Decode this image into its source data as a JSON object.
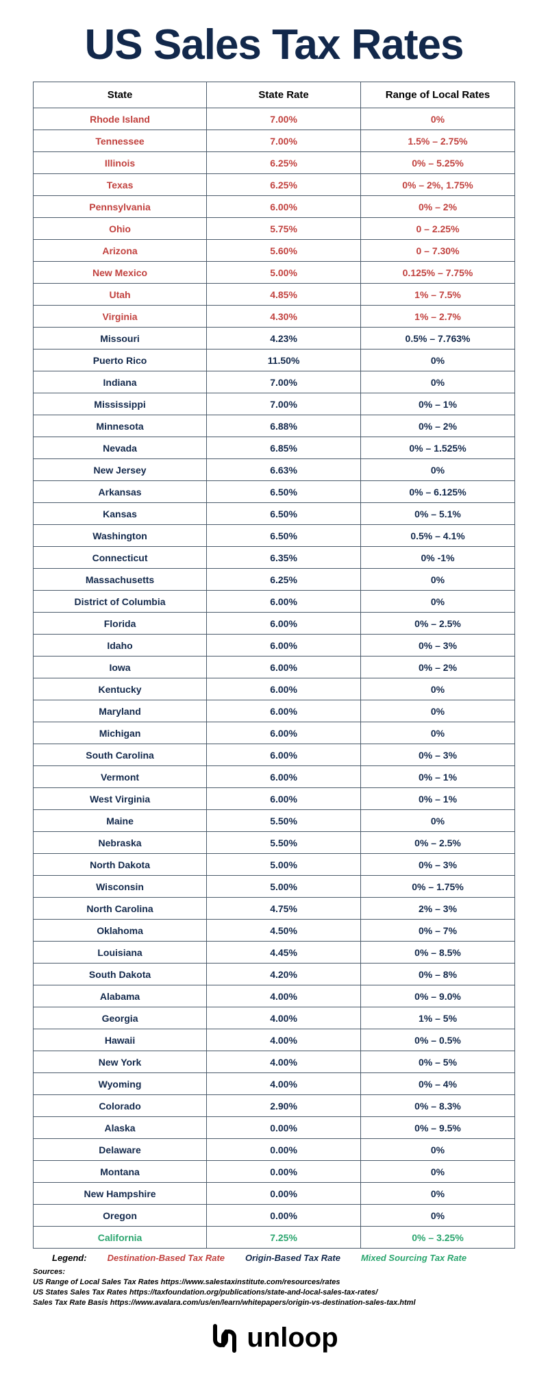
{
  "title": "US Sales Tax Rates",
  "columns": [
    "State",
    "State Rate",
    "Range of Local Rates"
  ],
  "column_widths": [
    "36%",
    "32%",
    "32%"
  ],
  "color_map": {
    "destination": "#c1413e",
    "origin": "#12284b",
    "mixed": "#2aa56e",
    "border": "#4a5a6a",
    "title": "#12284b",
    "background": "#ffffff"
  },
  "font_sizes": {
    "title": 62,
    "header": 15,
    "cell": 14,
    "legend": 13,
    "sources": 11,
    "logo": 40
  },
  "rows": [
    {
      "state": "Rhode Island",
      "rate": "7.00%",
      "local": "0%",
      "type": "destination"
    },
    {
      "state": "Tennessee",
      "rate": "7.00%",
      "local": "1.5% – 2.75%",
      "type": "destination"
    },
    {
      "state": "Illinois",
      "rate": "6.25%",
      "local": "0% – 5.25%",
      "type": "destination"
    },
    {
      "state": "Texas",
      "rate": "6.25%",
      "local": "0% – 2%, 1.75%",
      "type": "destination"
    },
    {
      "state": "Pennsylvania",
      "rate": "6.00%",
      "local": "0% – 2%",
      "type": "destination"
    },
    {
      "state": "Ohio",
      "rate": "5.75%",
      "local": "0 – 2.25%",
      "type": "destination"
    },
    {
      "state": "Arizona",
      "rate": "5.60%",
      "local": "0 – 7.30%",
      "type": "destination"
    },
    {
      "state": "New Mexico",
      "rate": "5.00%",
      "local": "0.125% – 7.75%",
      "type": "destination"
    },
    {
      "state": "Utah",
      "rate": "4.85%",
      "local": "1% – 7.5%",
      "type": "destination"
    },
    {
      "state": "Virginia",
      "rate": "4.30%",
      "local": "1% – 2.7%",
      "type": "destination"
    },
    {
      "state": "Missouri",
      "rate": "4.23%",
      "local": "0.5% – 7.763%",
      "type": "origin"
    },
    {
      "state": "Puerto Rico",
      "rate": "11.50%",
      "local": "0%",
      "type": "origin"
    },
    {
      "state": "Indiana",
      "rate": "7.00%",
      "local": "0%",
      "type": "origin"
    },
    {
      "state": "Mississippi",
      "rate": "7.00%",
      "local": "0% – 1%",
      "type": "origin"
    },
    {
      "state": "Minnesota",
      "rate": "6.88%",
      "local": "0% – 2%",
      "type": "origin"
    },
    {
      "state": "Nevada",
      "rate": "6.85%",
      "local": "0% – 1.525%",
      "type": "origin"
    },
    {
      "state": "New Jersey",
      "rate": "6.63%",
      "local": "0%",
      "type": "origin"
    },
    {
      "state": "Arkansas",
      "rate": "6.50%",
      "local": "0% – 6.125%",
      "type": "origin"
    },
    {
      "state": "Kansas",
      "rate": "6.50%",
      "local": "0% – 5.1%",
      "type": "origin"
    },
    {
      "state": "Washington",
      "rate": "6.50%",
      "local": "0.5% – 4.1%",
      "type": "origin"
    },
    {
      "state": "Connecticut",
      "rate": "6.35%",
      "local": "0% -1%",
      "type": "origin"
    },
    {
      "state": "Massachusetts",
      "rate": "6.25%",
      "local": "0%",
      "type": "origin"
    },
    {
      "state": "District of Columbia",
      "rate": "6.00%",
      "local": "0%",
      "type": "origin"
    },
    {
      "state": "Florida",
      "rate": "6.00%",
      "local": "0% – 2.5%",
      "type": "origin"
    },
    {
      "state": "Idaho",
      "rate": "6.00%",
      "local": "0% – 3%",
      "type": "origin"
    },
    {
      "state": "Iowa",
      "rate": "6.00%",
      "local": "0% – 2%",
      "type": "origin"
    },
    {
      "state": "Kentucky",
      "rate": "6.00%",
      "local": "0%",
      "type": "origin"
    },
    {
      "state": "Maryland",
      "rate": "6.00%",
      "local": "0%",
      "type": "origin"
    },
    {
      "state": "Michigan",
      "rate": "6.00%",
      "local": "0%",
      "type": "origin"
    },
    {
      "state": "South Carolina",
      "rate": "6.00%",
      "local": "0% – 3%",
      "type": "origin"
    },
    {
      "state": "Vermont",
      "rate": "6.00%",
      "local": "0% – 1%",
      "type": "origin"
    },
    {
      "state": "West Virginia",
      "rate": "6.00%",
      "local": "0% – 1%",
      "type": "origin"
    },
    {
      "state": "Maine",
      "rate": "5.50%",
      "local": "0%",
      "type": "origin"
    },
    {
      "state": "Nebraska",
      "rate": "5.50%",
      "local": "0% – 2.5%",
      "type": "origin"
    },
    {
      "state": "North Dakota",
      "rate": "5.00%",
      "local": "0% – 3%",
      "type": "origin"
    },
    {
      "state": "Wisconsin",
      "rate": "5.00%",
      "local": "0% – 1.75%",
      "type": "origin"
    },
    {
      "state": "North Carolina",
      "rate": "4.75%",
      "local": "2% – 3%",
      "type": "origin"
    },
    {
      "state": "Oklahoma",
      "rate": "4.50%",
      "local": "0% – 7%",
      "type": "origin"
    },
    {
      "state": "Louisiana",
      "rate": "4.45%",
      "local": "0% – 8.5%",
      "type": "origin"
    },
    {
      "state": "South Dakota",
      "rate": "4.20%",
      "local": "0% – 8%",
      "type": "origin"
    },
    {
      "state": "Alabama",
      "rate": "4.00%",
      "local": "0% – 9.0%",
      "type": "origin"
    },
    {
      "state": "Georgia",
      "rate": "4.00%",
      "local": "1% – 5%",
      "type": "origin"
    },
    {
      "state": "Hawaii",
      "rate": "4.00%",
      "local": "0% – 0.5%",
      "type": "origin"
    },
    {
      "state": "New York",
      "rate": "4.00%",
      "local": "0% – 5%",
      "type": "origin"
    },
    {
      "state": "Wyoming",
      "rate": "4.00%",
      "local": "0% – 4%",
      "type": "origin"
    },
    {
      "state": "Colorado",
      "rate": "2.90%",
      "local": "0% – 8.3%",
      "type": "origin"
    },
    {
      "state": "Alaska",
      "rate": "0.00%",
      "local": "0% – 9.5%",
      "type": "origin"
    },
    {
      "state": "Delaware",
      "rate": "0.00%",
      "local": "0%",
      "type": "origin"
    },
    {
      "state": "Montana",
      "rate": "0.00%",
      "local": "0%",
      "type": "origin"
    },
    {
      "state": "New Hampshire",
      "rate": "0.00%",
      "local": "0%",
      "type": "origin"
    },
    {
      "state": "Oregon",
      "rate": "0.00%",
      "local": "0%",
      "type": "origin"
    },
    {
      "state": "California",
      "rate": "7.25%",
      "local": "0% – 3.25%",
      "type": "mixed"
    }
  ],
  "legend": {
    "label": "Legend:",
    "destination": "Destination-Based Tax Rate",
    "origin": "Origin-Based Tax Rate",
    "mixed": "Mixed Sourcing Tax Rate"
  },
  "sources": {
    "label": "Sources:",
    "lines": [
      "US Range of Local Sales Tax Rates https://www.salestaxinstitute.com/resources/rates",
      "US States Sales Tax Rates https://taxfoundation.org/publications/state-and-local-sales-tax-rates/",
      "Sales Tax Rate Basis https://www.avalara.com/us/en/learn/whitepapers/origin-vs-destination-sales-tax.html"
    ]
  },
  "logo": {
    "mark": "ᴒ",
    "text": "unloop"
  }
}
